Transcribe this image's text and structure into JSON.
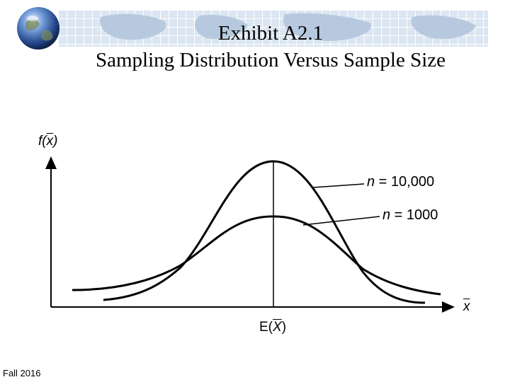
{
  "slide": {
    "title_line1": "Exhibit A2.1",
    "title_line2": "Sampling Distribution Versus Sample Size",
    "footer": "Fall 2016"
  },
  "diagram": {
    "y_axis_label": {
      "prefix": "f(",
      "var": "x",
      "suffix": ")"
    },
    "x_axis_label": "x",
    "center_label": {
      "prefix": "E(",
      "var": "X",
      "suffix": ")"
    },
    "curves": [
      {
        "n_prefix": "n",
        "n_text": " = 10,000"
      },
      {
        "n_prefix": "n",
        "n_text": " = 1000"
      }
    ]
  },
  "colors": {
    "header_band": "#dbe6f2",
    "globe": "#2f5fa8"
  }
}
